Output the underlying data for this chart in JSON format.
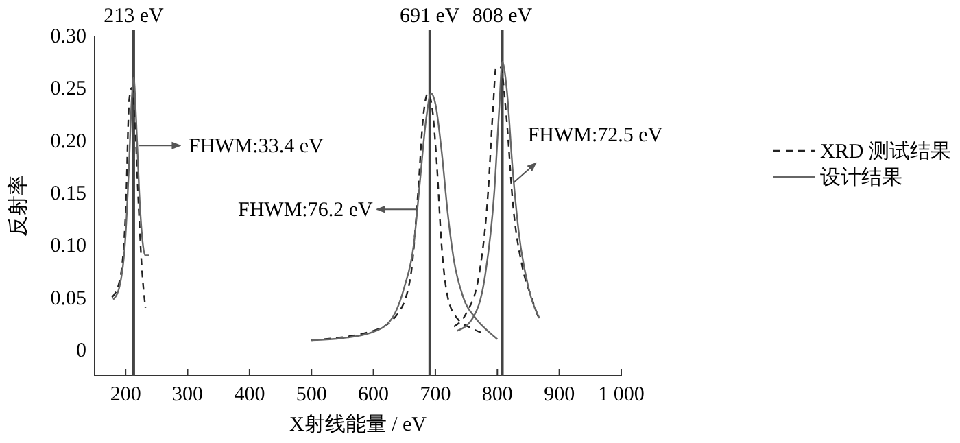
{
  "chart_data": {
    "type": "line",
    "xlabel": "X射线能量 / eV",
    "ylabel": "反射率",
    "xlim": [
      150,
      1000
    ],
    "xticks": [
      200,
      300,
      400,
      500,
      600,
      700,
      800,
      900,
      {
        "value": 1000,
        "label": "1 000"
      }
    ],
    "ylim": [
      -0.025,
      0.3
    ],
    "yticks": [
      0,
      0.05,
      {
        "value": 0.1,
        "label": "0.10"
      },
      0.15,
      {
        "value": 0.2,
        "label": "0.20"
      },
      0.25,
      {
        "value": 0.3,
        "label": "0.30"
      }
    ],
    "grid": false,
    "legend": "right",
    "series": [
      {
        "name": "XRD 测试结果",
        "color": "#222222",
        "line_style": "dashed",
        "x": [
          178,
          190,
          200,
          206,
          210,
          215,
          220,
          226,
          232,
          366,
          500,
          600,
          640,
          660,
          672,
          680,
          688,
          695,
          702,
          710,
          720,
          735,
          760,
          780,
          755,
          730,
          750,
          770,
          785,
          793,
          798,
          805,
          815,
          825,
          840,
          855,
          868
        ],
        "values": [
          0.05,
          0.065,
          0.13,
          0.24,
          0.25,
          0.22,
          0.15,
          0.08,
          0.04,
          null,
          0.009,
          0.018,
          0.035,
          0.07,
          0.15,
          0.22,
          0.245,
          0.23,
          0.18,
          0.1,
          0.05,
          0.03,
          0.02,
          0.015,
          null,
          0.022,
          0.035,
          0.07,
          0.15,
          0.23,
          0.27,
          0.27,
          0.22,
          0.14,
          0.08,
          0.05,
          0.028
        ]
      },
      {
        "name": "设计结果",
        "color": "#666666",
        "line_style": "solid",
        "x": [
          180,
          190,
          200,
          205,
          210,
          213,
          217,
          222,
          228,
          232,
          238,
          370,
          500,
          550,
          600,
          630,
          650,
          665,
          675,
          685,
          693,
          700,
          710,
          720,
          730,
          745,
          765,
          790,
          800,
          767,
          735,
          760,
          780,
          795,
          803,
          808,
          815,
          825,
          835,
          850,
          868
        ],
        "values": [
          0.048,
          0.06,
          0.11,
          0.17,
          0.24,
          0.26,
          0.22,
          0.15,
          0.1,
          0.09,
          0.09,
          null,
          0.009,
          0.011,
          0.017,
          0.03,
          0.06,
          0.1,
          0.16,
          0.22,
          0.245,
          0.235,
          0.19,
          0.13,
          0.085,
          0.05,
          0.03,
          0.015,
          0.01,
          null,
          0.018,
          0.03,
          0.07,
          0.15,
          0.23,
          0.275,
          0.25,
          0.17,
          0.11,
          0.06,
          0.03
        ]
      }
    ],
    "ref_lines": [
      {
        "axis": "x",
        "value": 213,
        "label": "213 eV",
        "color": "#444444"
      },
      {
        "axis": "x",
        "value": 691,
        "label": "691 eV",
        "color": "#444444"
      },
      {
        "axis": "x",
        "value": 808,
        "label": "808 eV",
        "color": "#444444"
      }
    ],
    "annotations": [
      {
        "text": "FHWM:33.4 eV",
        "x": 222,
        "y": 0.195
      },
      {
        "text": "FHWM:76.2 eV",
        "x": 672,
        "y": 0.134
      },
      {
        "text": "FHWM:72.5 eV",
        "x": 827,
        "y": 0.16
      }
    ]
  }
}
